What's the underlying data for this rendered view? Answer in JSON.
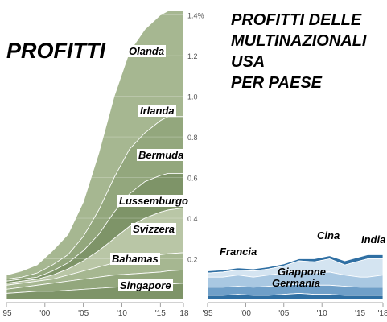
{
  "headline_left": "PROFITTI",
  "headline_right": [
    "PROFITTI DELLE",
    "MULTINAZIONALI",
    "USA",
    "PER PAESE"
  ],
  "chart_data": [
    {
      "type": "area",
      "stacked": true,
      "x_tick_labels": [
        "'95",
        "'00",
        "'05",
        "'10",
        "'15",
        "'18"
      ],
      "x_ticks": [
        1995,
        2000,
        2005,
        2010,
        2015,
        2018
      ],
      "y_tick_labels": [
        "1.4%",
        "1.2",
        "1.0",
        "0.8",
        "0.6",
        "0.4",
        "0.2"
      ],
      "y_ticks": [
        1.4,
        1.2,
        1.0,
        0.8,
        0.6,
        0.4,
        0.2
      ],
      "ylim": [
        0,
        1.45
      ],
      "xlim": [
        1995,
        2018
      ],
      "colors": [
        "#7e9468",
        "#93a77d",
        "#a6b791",
        "#b9c6a6"
      ],
      "x": [
        1995,
        1997,
        1999,
        2001,
        2003,
        2005,
        2007,
        2009,
        2011,
        2013,
        2015,
        2016,
        2018
      ],
      "series": [
        {
          "name": "Singapore",
          "values": [
            0.03,
            0.035,
            0.04,
            0.04,
            0.045,
            0.05,
            0.055,
            0.06,
            0.065,
            0.07,
            0.075,
            0.075,
            0.08
          ]
        },
        {
          "name": "Bahamas",
          "values": [
            0.05,
            0.06,
            0.07,
            0.08,
            0.09,
            0.1,
            0.11,
            0.12,
            0.125,
            0.13,
            0.135,
            0.14,
            0.145
          ]
        },
        {
          "name": "Svizzera",
          "values": [
            0.07,
            0.08,
            0.09,
            0.1,
            0.12,
            0.14,
            0.16,
            0.18,
            0.2,
            0.21,
            0.22,
            0.225,
            0.23
          ]
        },
        {
          "name": "Lussemburgo",
          "values": [
            0.08,
            0.09,
            0.1,
            0.12,
            0.15,
            0.19,
            0.24,
            0.3,
            0.36,
            0.4,
            0.43,
            0.44,
            0.45
          ]
        },
        {
          "name": "Bermuda",
          "values": [
            0.09,
            0.1,
            0.11,
            0.14,
            0.18,
            0.24,
            0.32,
            0.43,
            0.52,
            0.58,
            0.61,
            0.62,
            0.62
          ]
        },
        {
          "name": "Irlanda",
          "values": [
            0.1,
            0.11,
            0.13,
            0.17,
            0.22,
            0.31,
            0.44,
            0.6,
            0.74,
            0.82,
            0.88,
            0.9,
            0.9
          ]
        },
        {
          "name": "Olanda",
          "values": [
            0.12,
            0.14,
            0.17,
            0.24,
            0.32,
            0.48,
            0.72,
            1.0,
            1.22,
            1.33,
            1.4,
            1.42,
            1.42
          ]
        }
      ]
    },
    {
      "type": "area",
      "stacked": true,
      "x_tick_labels": [
        "'95",
        "'00",
        "'05",
        "'10",
        "'15",
        "'18"
      ],
      "x_ticks": [
        1995,
        2000,
        2005,
        2010,
        2015,
        2018
      ],
      "ylim": [
        0,
        1.45
      ],
      "xlim": [
        1995,
        2018
      ],
      "colors": [
        "#2f6fa3",
        "#6f9fc8",
        "#a9c8e2",
        "#d4e4f1"
      ],
      "x": [
        1995,
        1997,
        1999,
        2001,
        2003,
        2005,
        2007,
        2009,
        2011,
        2013,
        2015,
        2016,
        2018
      ],
      "series": [
        {
          "name": "Germania",
          "values": [
            0.02,
            0.02,
            0.025,
            0.02,
            0.02,
            0.025,
            0.03,
            0.025,
            0.025,
            0.02,
            0.02,
            0.02,
            0.02
          ]
        },
        {
          "name": "Giappone",
          "values": [
            0.06,
            0.06,
            0.065,
            0.06,
            0.065,
            0.07,
            0.075,
            0.07,
            0.07,
            0.065,
            0.06,
            0.06,
            0.06
          ]
        },
        {
          "name": "Francia",
          "values": [
            0.11,
            0.11,
            0.12,
            0.11,
            0.12,
            0.13,
            0.14,
            0.13,
            0.135,
            0.12,
            0.11,
            0.11,
            0.12
          ]
        },
        {
          "name": "Cina",
          "values": [
            0.13,
            0.135,
            0.145,
            0.14,
            0.15,
            0.165,
            0.19,
            0.185,
            0.2,
            0.17,
            0.19,
            0.2,
            0.2
          ]
        },
        {
          "name": "India",
          "values": [
            0.14,
            0.145,
            0.155,
            0.15,
            0.16,
            0.175,
            0.2,
            0.2,
            0.215,
            0.19,
            0.21,
            0.22,
            0.22
          ]
        }
      ]
    }
  ]
}
